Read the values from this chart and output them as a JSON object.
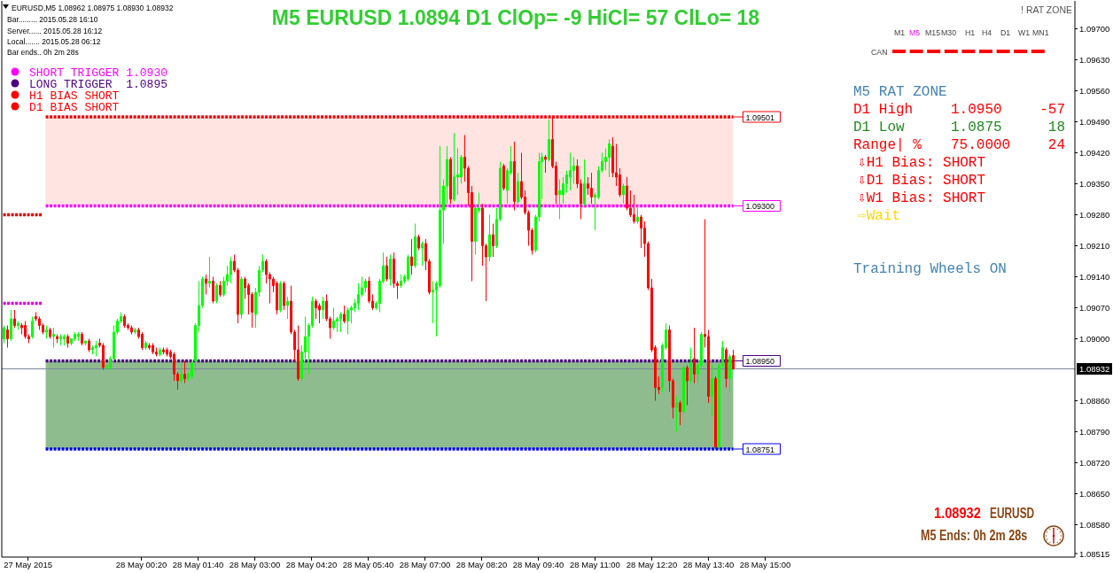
{
  "chart_data": {
    "type": "candlestick",
    "title": "M5 EURUSD 1.0894 D1 ClOp= -9 HiCl= 57 ClLo= 18",
    "annotations": [
      "EURUSD,M5 1.08962 1.08975 1.08930 1.08932",
      "Bar......... 2015.05.28 16:10",
      "Server...... 2015.05.28 16:12",
      "Local....... 2015.05.28 06:12",
      "Bar ends.. 0h 2m 28s",
      "H1 BIAS SHORT",
      "D1 BIAS SHORT",
      "! RAT ZONE",
      "M1",
      "M5",
      "M15",
      "M30",
      "H1",
      "H4",
      "D1",
      "W1",
      "MN1",
      "CAN",
      "M5 RAT ZONE",
      "D1 High",
      "1.0950",
      "-57",
      "D1 Low",
      "1.0875",
      "18",
      "Range| %",
      "75.0000",
      "24",
      "⇩H1 Bias: SHORT",
      "⇩D1 Bias: SHORT",
      "⇩W1 Bias: SHORT",
      "⇨Wait",
      "Training Wheels ON",
      "1.08932",
      "EURUSD",
      "M5 Ends: 0h 2m 28s"
    ],
    "x": [
      "2015-05-27T21:05",
      "2015-05-27T21:10",
      "2015-05-27T21:15",
      "2015-05-27T21:20",
      "2015-05-27T21:25",
      "2015-05-27T21:30",
      "2015-05-27T21:35",
      "2015-05-27T21:40",
      "2015-05-27T21:45",
      "2015-05-27T21:50",
      "2015-05-27T21:55",
      "2015-05-27T22:00",
      "2015-05-27T22:05",
      "2015-05-27T22:10",
      "2015-05-27T22:15",
      "2015-05-27T22:20",
      "2015-05-27T22:25",
      "2015-05-27T22:30",
      "2015-05-27T22:35",
      "2015-05-27T22:40",
      "2015-05-27T22:45",
      "2015-05-27T22:50",
      "2015-05-27T22:55",
      "2015-05-27T23:00",
      "2015-05-27T23:05",
      "2015-05-27T23:10",
      "2015-05-27T23:15",
      "2015-05-27T23:20",
      "2015-05-27T23:25",
      "2015-05-27T23:30",
      "2015-05-27T23:35",
      "2015-05-27T23:40",
      "2015-05-27T23:45",
      "2015-05-27T23:50",
      "2015-05-27T23:55",
      "2015-05-28T00:00",
      "2015-05-28T00:05",
      "2015-05-28T00:10",
      "2015-05-28T00:15",
      "2015-05-28T00:20",
      "2015-05-28T00:25",
      "2015-05-28T00:30",
      "2015-05-28T00:35",
      "2015-05-28T00:40",
      "2015-05-28T00:45",
      "2015-05-28T00:50",
      "2015-05-28T00:55",
      "2015-05-28T01:00",
      "2015-05-28T01:05",
      "2015-05-28T01:10",
      "2015-05-28T01:15",
      "2015-05-28T01:20",
      "2015-05-28T01:25",
      "2015-05-28T01:30",
      "2015-05-28T01:35",
      "2015-05-28T01:40",
      "2015-05-28T01:45",
      "2015-05-28T01:50",
      "2015-05-28T01:55",
      "2015-05-28T02:00",
      "2015-05-28T02:05",
      "2015-05-28T02:10",
      "2015-05-28T02:15",
      "2015-05-28T02:20",
      "2015-05-28T02:25",
      "2015-05-28T02:30",
      "2015-05-28T02:35",
      "2015-05-28T02:40",
      "2015-05-28T02:45",
      "2015-05-28T02:50",
      "2015-05-28T02:55",
      "2015-05-28T03:00",
      "2015-05-28T03:05",
      "2015-05-28T03:10",
      "2015-05-28T03:15",
      "2015-05-28T03:20",
      "2015-05-28T03:25",
      "2015-05-28T03:30",
      "2015-05-28T03:35",
      "2015-05-28T03:40",
      "2015-05-28T03:45",
      "2015-05-28T03:50",
      "2015-05-28T03:55",
      "2015-05-28T04:00",
      "2015-05-28T04:05",
      "2015-05-28T04:10",
      "2015-05-28T04:15",
      "2015-05-28T04:20",
      "2015-05-28T04:25",
      "2015-05-28T04:30",
      "2015-05-28T04:35",
      "2015-05-28T04:40",
      "2015-05-28T04:45",
      "2015-05-28T04:50",
      "2015-05-28T04:55",
      "2015-05-28T05:00",
      "2015-05-28T05:05",
      "2015-05-28T05:10",
      "2015-05-28T05:15",
      "2015-05-28T05:20",
      "2015-05-28T05:25",
      "2015-05-28T05:30",
      "2015-05-28T05:35",
      "2015-05-28T05:40",
      "2015-05-28T05:45",
      "2015-05-28T05:50",
      "2015-05-28T05:55",
      "2015-05-28T06:00",
      "2015-05-28T06:05",
      "2015-05-28T06:10",
      "2015-05-28T06:15",
      "2015-05-28T06:20",
      "2015-05-28T06:25",
      "2015-05-28T06:30",
      "2015-05-28T06:35",
      "2015-05-28T06:40",
      "2015-05-28T06:45",
      "2015-05-28T06:50",
      "2015-05-28T06:55",
      "2015-05-28T07:00",
      "2015-05-28T07:05",
      "2015-05-28T07:10",
      "2015-05-28T07:15",
      "2015-05-28T07:20",
      "2015-05-28T07:25",
      "2015-05-28T07:30",
      "2015-05-28T07:35",
      "2015-05-28T07:40",
      "2015-05-28T07:45",
      "2015-05-28T07:50",
      "2015-05-28T07:55",
      "2015-05-28T08:00",
      "2015-05-28T08:05",
      "2015-05-28T08:10",
      "2015-05-28T08:15",
      "2015-05-28T08:20",
      "2015-05-28T08:25",
      "2015-05-28T08:30",
      "2015-05-28T08:35",
      "2015-05-28T08:40",
      "2015-05-28T08:45",
      "2015-05-28T08:50",
      "2015-05-28T08:55",
      "2015-05-28T09:00",
      "2015-05-28T09:05",
      "2015-05-28T09:10",
      "2015-05-28T09:15",
      "2015-05-28T09:20",
      "2015-05-28T09:25",
      "2015-05-28T09:30",
      "2015-05-28T09:35",
      "2015-05-28T09:40",
      "2015-05-28T09:45",
      "2015-05-28T09:50",
      "2015-05-28T09:55",
      "2015-05-28T10:00",
      "2015-05-28T10:05",
      "2015-05-28T10:10",
      "2015-05-28T10:15",
      "2015-05-28T10:20",
      "2015-05-28T10:25",
      "2015-05-28T10:30",
      "2015-05-28T10:35",
      "2015-05-28T10:40",
      "2015-05-28T10:45",
      "2015-05-28T10:50",
      "2015-05-28T10:55",
      "2015-05-28T11:00",
      "2015-05-28T11:05",
      "2015-05-28T11:10",
      "2015-05-28T11:15",
      "2015-05-28T11:20",
      "2015-05-28T11:25",
      "2015-05-28T11:30",
      "2015-05-28T11:35",
      "2015-05-28T11:40",
      "2015-05-28T11:45",
      "2015-05-28T11:50",
      "2015-05-28T11:55",
      "2015-05-28T12:00",
      "2015-05-28T12:05",
      "2015-05-28T12:10",
      "2015-05-28T12:15",
      "2015-05-28T12:20",
      "2015-05-28T12:25",
      "2015-05-28T12:30",
      "2015-05-28T12:35",
      "2015-05-28T12:40",
      "2015-05-28T12:45",
      "2015-05-28T12:50",
      "2015-05-28T12:55",
      "2015-05-28T13:00",
      "2015-05-28T13:05",
      "2015-05-28T13:10",
      "2015-05-28T13:15",
      "2015-05-28T13:20",
      "2015-05-28T13:25",
      "2015-05-28T13:30",
      "2015-05-28T13:35",
      "2015-05-28T13:40",
      "2015-05-28T13:45",
      "2015-05-28T13:50",
      "2015-05-28T13:55",
      "2015-05-28T14:00",
      "2015-05-28T14:05",
      "2015-05-28T14:10",
      "2015-05-28T14:15"
    ],
    "ohlc": [
      [
        1.09,
        1.0903,
        1.0899,
        1.09025
      ],
      [
        1.0902,
        1.0903,
        1.0898,
        1.09
      ],
      [
        1.09,
        1.09065,
        1.08995,
        1.09045
      ],
      [
        1.09045,
        1.09065,
        1.09025,
        1.0903
      ],
      [
        1.0903,
        1.0904,
        1.0902,
        1.09035
      ],
      [
        1.0903,
        1.09035,
        1.0901,
        1.09025
      ],
      [
        1.0903,
        1.0904,
        1.09,
        1.09005
      ],
      [
        1.09005,
        1.0901,
        1.0899,
        1.09
      ],
      [
        1.09005,
        1.0905,
        1.09,
        1.0904
      ],
      [
        1.0905,
        1.0906,
        1.0904,
        1.09045
      ],
      [
        1.09045,
        1.0905,
        1.0902,
        1.0903
      ],
      [
        1.0903,
        1.09035,
        1.0901,
        1.09015
      ],
      [
        1.09015,
        1.0903,
        1.09,
        1.0902
      ],
      [
        1.0902,
        1.09025,
        1.09,
        1.09005
      ],
      [
        1.09005,
        1.09025,
        1.0898,
        1.0901
      ],
      [
        1.09005,
        1.0901,
        1.0899,
        1.09
      ],
      [
        1.09,
        1.0901,
        1.08985,
        1.09005
      ],
      [
        1.09,
        1.0901,
        1.08985,
        1.09005
      ],
      [
        1.09005,
        1.0901,
        1.0898,
        1.0899
      ],
      [
        1.0899,
        1.09,
        1.08985,
        1.09
      ],
      [
        1.09,
        1.09015,
        1.08995,
        1.0901
      ],
      [
        1.09005,
        1.09015,
        1.08995,
        1.0901
      ],
      [
        1.0901,
        1.09015,
        1.08985,
        1.0899
      ],
      [
        1.0899,
        1.08995,
        1.08985,
        1.08995
      ],
      [
        1.08995,
        1.09,
        1.0897,
        1.08975
      ],
      [
        1.08975,
        1.08985,
        1.08965,
        1.0898
      ],
      [
        1.0898,
        1.08995,
        1.0896,
        1.08985
      ],
      [
        1.0899,
        1.09,
        1.0898,
        1.08985
      ],
      [
        1.08985,
        1.0899,
        1.0893,
        1.08935
      ],
      [
        1.08935,
        1.0894,
        1.0893,
        1.0894
      ],
      [
        1.08935,
        1.0896,
        1.0893,
        1.08955
      ],
      [
        1.08955,
        1.0903,
        1.0895,
        1.09015
      ],
      [
        1.09015,
        1.09045,
        1.0901,
        1.0904
      ],
      [
        1.0904,
        1.0906,
        1.09035,
        1.0905
      ],
      [
        1.0905,
        1.09055,
        1.09025,
        1.0903
      ],
      [
        1.0903,
        1.09035,
        1.0902,
        1.09025
      ],
      [
        1.09025,
        1.0903,
        1.0901,
        1.09015
      ],
      [
        1.09015,
        1.09025,
        1.0901,
        1.0902
      ],
      [
        1.0902,
        1.09025,
        1.09,
        1.09005
      ],
      [
        1.0901,
        1.09015,
        1.08975,
        1.0898
      ],
      [
        1.0898,
        1.08995,
        1.08975,
        1.0899
      ],
      [
        1.08985,
        1.0899,
        1.08975,
        1.0898
      ],
      [
        1.08985,
        1.0899,
        1.08965,
        1.0897
      ],
      [
        1.0897,
        1.0898,
        1.0896,
        1.08965
      ],
      [
        1.08965,
        1.0898,
        1.0896,
        1.08975
      ],
      [
        1.08975,
        1.0898,
        1.08965,
        1.0897
      ],
      [
        1.08975,
        1.0898,
        1.0896,
        1.08965
      ],
      [
        1.0897,
        1.08975,
        1.08955,
        1.0896
      ],
      [
        1.08965,
        1.0897,
        1.08905,
        1.0892
      ],
      [
        1.0892,
        1.08925,
        1.08885,
        1.08905
      ],
      [
        1.08905,
        1.08945,
        1.089,
        1.0892
      ],
      [
        1.0892,
        1.0895,
        1.089,
        1.0891
      ],
      [
        1.0891,
        1.08925,
        1.08905,
        1.0892
      ],
      [
        1.08915,
        1.0895,
        1.0891,
        1.08945
      ],
      [
        1.0895,
        1.09035,
        1.08925,
        1.0903
      ],
      [
        1.0903,
        1.0913,
        1.09015,
        1.09075
      ],
      [
        1.09075,
        1.0914,
        1.0907,
        1.09135
      ],
      [
        1.09135,
        1.09145,
        1.091,
        1.09125
      ],
      [
        1.09125,
        1.09185,
        1.09115,
        1.0913
      ],
      [
        1.0913,
        1.0914,
        1.0908,
        1.09085
      ],
      [
        1.09085,
        1.09125,
        1.0908,
        1.0912
      ],
      [
        1.0912,
        1.0913,
        1.09095,
        1.091
      ],
      [
        1.091,
        1.0914,
        1.09095,
        1.0913
      ],
      [
        1.0913,
        1.09165,
        1.0912,
        1.09145
      ],
      [
        1.09145,
        1.09185,
        1.09125,
        1.09175
      ],
      [
        1.09175,
        1.0919,
        1.0915,
        1.09155
      ],
      [
        1.09155,
        1.0916,
        1.09035,
        1.09055
      ],
      [
        1.09055,
        1.0914,
        1.09045,
        1.09135
      ],
      [
        1.09135,
        1.0914,
        1.0909,
        1.09115
      ],
      [
        1.0912,
        1.09125,
        1.09055,
        1.091
      ],
      [
        1.091,
        1.09105,
        1.09025,
        1.0906
      ],
      [
        1.09055,
        1.09115,
        1.09025,
        1.09105
      ],
      [
        1.09105,
        1.09165,
        1.09095,
        1.09155
      ],
      [
        1.09155,
        1.0919,
        1.0915,
        1.09175
      ],
      [
        1.09175,
        1.0918,
        1.09125,
        1.09145
      ],
      [
        1.09145,
        1.0915,
        1.0908,
        1.09135
      ],
      [
        1.09135,
        1.0914,
        1.09105,
        1.0912
      ],
      [
        1.09125,
        1.0913,
        1.09055,
        1.09065
      ],
      [
        1.09065,
        1.0913,
        1.0906,
        1.09125
      ],
      [
        1.09125,
        1.0913,
        1.09065,
        1.09075
      ],
      [
        1.09075,
        1.09095,
        1.09045,
        1.09085
      ],
      [
        1.09085,
        1.0912,
        1.0901,
        1.09015
      ],
      [
        1.09015,
        1.0902,
        1.0895,
        1.08975
      ],
      [
        1.08975,
        1.0903,
        1.08905,
        1.0891
      ],
      [
        1.0891,
        1.08985,
        1.08905,
        1.0897
      ],
      [
        1.0897,
        1.0905,
        1.0895,
        1.09005
      ],
      [
        1.09005,
        1.09035,
        1.0892,
        1.0903
      ],
      [
        1.0903,
        1.09095,
        1.09025,
        1.09085
      ],
      [
        1.09085,
        1.0909,
        1.09045,
        1.0907
      ],
      [
        1.09075,
        1.0908,
        1.09035,
        1.09065
      ],
      [
        1.09065,
        1.09095,
        1.09045,
        1.09085
      ],
      [
        1.09085,
        1.091,
        1.0904,
        1.09045
      ],
      [
        1.09045,
        1.0905,
        1.09,
        1.09025
      ],
      [
        1.09025,
        1.0907,
        1.0902,
        1.0904
      ],
      [
        1.0904,
        1.0905,
        1.09015,
        1.09045
      ],
      [
        1.09045,
        1.0906,
        1.09015,
        1.09055
      ],
      [
        1.09055,
        1.09075,
        1.09035,
        1.0904
      ],
      [
        1.0904,
        1.0907,
        1.0901,
        1.09065
      ],
      [
        1.09065,
        1.09075,
        1.09035,
        1.0907
      ],
      [
        1.0907,
        1.0909,
        1.0906,
        1.0908
      ],
      [
        1.0908,
        1.09125,
        1.09065,
        1.091
      ],
      [
        1.091,
        1.0914,
        1.09095,
        1.09115
      ],
      [
        1.09115,
        1.09135,
        1.09105,
        1.0913
      ],
      [
        1.0913,
        1.0914,
        1.0908,
        1.09085
      ],
      [
        1.09085,
        1.091,
        1.09065,
        1.0907
      ],
      [
        1.0907,
        1.09085,
        1.09065,
        1.0908
      ],
      [
        1.0908,
        1.09135,
        1.0906,
        1.0913
      ],
      [
        1.0913,
        1.09195,
        1.09125,
        1.09165
      ],
      [
        1.09165,
        1.09185,
        1.0913,
        1.09135
      ],
      [
        1.09135,
        1.0919,
        1.0912,
        1.0918
      ],
      [
        1.0918,
        1.09195,
        1.09115,
        1.09125
      ],
      [
        1.09125,
        1.0913,
        1.0909,
        1.0912
      ],
      [
        1.0912,
        1.09145,
        1.09115,
        1.0913
      ],
      [
        1.0913,
        1.09145,
        1.09125,
        1.0914
      ],
      [
        1.09135,
        1.0919,
        1.0913,
        1.09185
      ],
      [
        1.09185,
        1.09225,
        1.09145,
        1.09165
      ],
      [
        1.09165,
        1.0926,
        1.0916,
        1.0923
      ],
      [
        1.0923,
        1.09235,
        1.092,
        1.09205
      ],
      [
        1.09205,
        1.0922,
        1.09165,
        1.09215
      ],
      [
        1.09215,
        1.09225,
        1.09155,
        1.09175
      ],
      [
        1.09175,
        1.0918,
        1.091,
        1.09105
      ],
      [
        1.09105,
        1.0913,
        1.09035,
        1.0911
      ],
      [
        1.0911,
        1.0913,
        1.09005,
        1.09125
      ],
      [
        1.0912,
        1.09435,
        1.09115,
        1.0929
      ],
      [
        1.0929,
        1.0936,
        1.09215,
        1.09345
      ],
      [
        1.09345,
        1.09435,
        1.09305,
        1.09405
      ],
      [
        1.09405,
        1.0941,
        1.09305,
        1.09315
      ],
      [
        1.09315,
        1.09465,
        1.0931,
        1.09365
      ],
      [
        1.09365,
        1.0943,
        1.09325,
        1.0937
      ],
      [
        1.09365,
        1.09415,
        1.0935,
        1.0941
      ],
      [
        1.0941,
        1.0946,
        1.09355,
        1.09385
      ],
      [
        1.09385,
        1.0939,
        1.093,
        1.0933
      ],
      [
        1.0933,
        1.09345,
        1.0913,
        1.0922
      ],
      [
        1.0922,
        1.093,
        1.0919,
        1.09295
      ],
      [
        1.0929,
        1.0933,
        1.09285,
        1.09295
      ],
      [
        1.09295,
        1.09305,
        1.09165,
        1.0921
      ],
      [
        1.0921,
        1.09215,
        1.09085,
        1.09185
      ],
      [
        1.09185,
        1.0928,
        1.09175,
        1.09235
      ],
      [
        1.09235,
        1.0926,
        1.09185,
        1.0921
      ],
      [
        1.0921,
        1.09295,
        1.09205,
        1.0927
      ],
      [
        1.0927,
        1.094,
        1.09265,
        1.09385
      ],
      [
        1.0939,
        1.09395,
        1.09335,
        1.0934
      ],
      [
        1.09335,
        1.09385,
        1.09305,
        1.0938
      ],
      [
        1.09375,
        1.09435,
        1.0937,
        1.094
      ],
      [
        1.094,
        1.09445,
        1.0929,
        1.0931
      ],
      [
        1.0931,
        1.09375,
        1.09305,
        1.09355
      ],
      [
        1.09355,
        1.0942,
        1.09315,
        1.0932
      ],
      [
        1.0932,
        1.09335,
        1.0928,
        1.09285
      ],
      [
        1.09285,
        1.0929,
        1.0921,
        1.09245
      ],
      [
        1.09245,
        1.0925,
        1.0919,
        1.092
      ],
      [
        1.092,
        1.0928,
        1.09195,
        1.09275
      ],
      [
        1.09275,
        1.0942,
        1.09265,
        1.094
      ],
      [
        1.094,
        1.0942,
        1.09315,
        1.0941
      ],
      [
        1.0941,
        1.09415,
        1.09375,
        1.09405
      ],
      [
        1.09405,
        1.09495,
        1.094,
        1.0945
      ],
      [
        1.0945,
        1.095,
        1.09385,
        1.0939
      ],
      [
        1.0939,
        1.094,
        1.09305,
        1.09325
      ],
      [
        1.09325,
        1.0936,
        1.0927,
        1.09335
      ],
      [
        1.09325,
        1.09365,
        1.09305,
        1.0935
      ],
      [
        1.0935,
        1.0938,
        1.0933,
        1.0937
      ],
      [
        1.09365,
        1.0942,
        1.09335,
        1.0938
      ],
      [
        1.0938,
        1.0941,
        1.0935,
        1.0939
      ],
      [
        1.0939,
        1.09405,
        1.0934,
        1.0935
      ],
      [
        1.0935,
        1.0936,
        1.0927,
        1.09305
      ],
      [
        1.09305,
        1.09405,
        1.093,
        1.0935
      ],
      [
        1.0935,
        1.09365,
        1.09325,
        1.0934
      ],
      [
        1.0934,
        1.09375,
        1.09305,
        1.0932
      ],
      [
        1.0932,
        1.0933,
        1.09245,
        1.09325
      ],
      [
        1.0932,
        1.0939,
        1.09315,
        1.0938
      ],
      [
        1.0938,
        1.0942,
        1.09375,
        1.094
      ],
      [
        1.094,
        1.0943,
        1.0938,
        1.0941
      ],
      [
        1.0941,
        1.0945,
        1.09365,
        1.0944
      ],
      [
        1.09435,
        1.09455,
        1.09365,
        1.09375
      ],
      [
        1.09375,
        1.0944,
        1.09345,
        1.09365
      ],
      [
        1.0937,
        1.09385,
        1.0932,
        1.09325
      ],
      [
        1.09325,
        1.0935,
        1.09305,
        1.09345
      ],
      [
        1.09345,
        1.09365,
        1.0929,
        1.09295
      ],
      [
        1.09295,
        1.09335,
        1.09275,
        1.0928
      ],
      [
        1.0928,
        1.09325,
        1.0926,
        1.09265
      ],
      [
        1.09265,
        1.093,
        1.0926,
        1.09275
      ],
      [
        1.09275,
        1.0928,
        1.09205,
        1.0925
      ],
      [
        1.0925,
        1.09265,
        1.09185,
        1.09215
      ],
      [
        1.09215,
        1.0922,
        1.0911,
        1.09115
      ],
      [
        1.09115,
        1.09135,
        1.0897,
        1.08975
      ],
      [
        1.0898,
        1.08985,
        1.0886,
        1.0889
      ],
      [
        1.0889,
        1.08915,
        1.08875,
        1.08885
      ],
      [
        1.0889,
        1.0899,
        1.0888,
        1.08985
      ],
      [
        1.0898,
        1.09035,
        1.08975,
        1.0902
      ],
      [
        1.0902,
        1.0903,
        1.0888,
        1.08905
      ],
      [
        1.08905,
        1.0891,
        1.0882,
        1.08845
      ],
      [
        1.08845,
        1.0887,
        1.0879,
        1.08855
      ],
      [
        1.08855,
        1.0886,
        1.08805,
        1.08835
      ],
      [
        1.08835,
        1.0894,
        1.0883,
        1.08935
      ],
      [
        1.08935,
        1.0894,
        1.0885,
        1.08905
      ],
      [
        1.08905,
        1.0898,
        1.089,
        1.08945
      ],
      [
        1.08955,
        1.09025,
        1.089,
        1.0892
      ],
      [
        1.0892,
        1.08945,
        1.089,
        1.0894
      ],
      [
        1.0894,
        1.09015,
        1.08935,
        1.0901
      ],
      [
        1.0901,
        1.0927,
        1.0898,
        1.09005
      ],
      [
        1.09005,
        1.0902,
        1.08855,
        1.0887
      ],
      [
        1.0887,
        1.0894,
        1.08825,
        1.0891
      ],
      [
        1.0891,
        1.08915,
        1.0875,
        1.08755
      ],
      [
        1.08755,
        1.08945,
        1.0875,
        1.0894
      ],
      [
        1.0894,
        1.08995,
        1.08935,
        1.0898
      ],
      [
        1.08975,
        1.0898,
        1.0889,
        1.0891
      ],
      [
        1.0891,
        1.08965,
        1.0888,
        1.0896
      ],
      [
        1.08962,
        1.08975,
        1.0893,
        1.08932
      ]
    ],
    "series": [
      {
        "type": "line",
        "color": "#ffe4e1",
        "x": [
          "2015-05-27T22:05",
          "2015-05-28T14:15"
        ],
        "values": [
          null,
          null
        ],
        "lower": [
          1.093,
          1.093
        ],
        "upper": [
          1.09501,
          1.09501
        ]
      },
      {
        "type": "line",
        "color": "#8fbc8f",
        "x": [
          "2015-05-27T22:05",
          "2015-05-28T14:15"
        ],
        "values": [
          null,
          null
        ],
        "lower": [
          1.08751,
          1.08751
        ],
        "upper": [
          1.0895,
          1.0895
        ]
      },
      {
        "type": "line",
        "color": "#f00000",
        "line_style": "dotted",
        "x": [
          "2015-05-27T22:05",
          "2015-05-28T14:15"
        ],
        "values": [
          1.09501,
          1.09501
        ],
        "value_labels": [
          null,
          "1.09501"
        ]
      },
      {
        "type": "line",
        "name": "SHORT TRIGGER 1.0930",
        "color": "#ff00ff",
        "line_style": "dotted",
        "x": [
          "2015-05-27T22:05",
          "2015-05-28T14:15"
        ],
        "values": [
          1.093,
          1.093
        ],
        "value_labels": [
          null,
          "1.09300"
        ]
      },
      {
        "type": "line",
        "name": "LONG TRIGGER  1.0895",
        "color": "#4b0082",
        "line_style": "dotted",
        "x": [
          "2015-05-27T22:05",
          "2015-05-28T14:15"
        ],
        "values": [
          1.0895,
          1.0895
        ],
        "value_labels": [
          null,
          "1.08950"
        ]
      },
      {
        "type": "line",
        "color": "#0000ff",
        "line_style": "dotted",
        "x": [
          "2015-05-27T22:05",
          "2015-05-28T14:15"
        ],
        "values": [
          1.08751,
          1.08751
        ],
        "value_labels": [
          null,
          "1.08751"
        ]
      },
      {
        "type": "line",
        "color": "#e00000",
        "line_style": "dotted",
        "x": [
          "2015-05-27T21:05",
          "2015-05-27T22:00"
        ],
        "values": [
          1.0928,
          1.0928
        ]
      },
      {
        "type": "line",
        "color": "#e000e0",
        "line_style": "dotted",
        "x": [
          "2015-05-27T21:05",
          "2015-05-27T22:00"
        ],
        "values": [
          1.0908,
          1.0908
        ]
      }
    ],
    "ref_lines": [
      {
        "axis": "y",
        "value": 1.08932,
        "label": "1.08932",
        "color": "#778899"
      }
    ],
    "xlim": [
      "2015-05-27T21:03",
      "2015-05-28T22:17"
    ],
    "xticks": [
      {
        "value": "2015-05-27T21:40",
        "label": "27 May 2015"
      },
      {
        "value": "2015-05-28T00:20",
        "label": "28 May 00:20"
      },
      {
        "value": "2015-05-28T01:40",
        "label": "28 May 01:40"
      },
      {
        "value": "2015-05-28T03:00",
        "label": "28 May 03:00"
      },
      {
        "value": "2015-05-28T04:20",
        "label": "28 May 04:20"
      },
      {
        "value": "2015-05-28T05:40",
        "label": "28 May 05:40"
      },
      {
        "value": "2015-05-28T07:00",
        "label": "28 May 07:00"
      },
      {
        "value": "2015-05-28T08:20",
        "label": "28 May 08:20"
      },
      {
        "value": "2015-05-28T09:40",
        "label": "28 May 09:40"
      },
      {
        "value": "2015-05-28T11:00",
        "label": "28 May 11:00"
      },
      {
        "value": "2015-05-28T12:20",
        "label": "28 May 12:20"
      },
      {
        "value": "2015-05-28T13:40",
        "label": "28 May 13:40"
      },
      {
        "value": "2015-05-28T15:00",
        "label": "28 May 15:00"
      }
    ],
    "ylim": [
      1.08507,
      1.09763
    ],
    "yticks": [
      {
        "value": 1.097,
        "label": "1.09700"
      },
      {
        "value": 1.0963,
        "label": "1.09630"
      },
      {
        "value": 1.0956,
        "label": "1.09560"
      },
      {
        "value": 1.0949,
        "label": "1.09490"
      },
      {
        "value": 1.0942,
        "label": "1.09420"
      },
      {
        "value": 1.0935,
        "label": "1.09350"
      },
      {
        "value": 1.0928,
        "label": "1.09280"
      },
      {
        "value": 1.0921,
        "label": "1.09210"
      },
      {
        "value": 1.0914,
        "label": "1.09140"
      },
      {
        "value": 1.0907,
        "label": "1.09070"
      },
      {
        "value": 1.09,
        "label": "1.09000"
      },
      {
        "value": 1.0886,
        "label": "1.08860"
      },
      {
        "value": 1.0879,
        "label": "1.08790"
      },
      {
        "value": 1.0872,
        "label": "1.08720"
      },
      {
        "value": 1.0865,
        "label": "1.08650"
      },
      {
        "value": 1.0858,
        "label": "1.08580"
      },
      {
        "value": 1.08515,
        "label": "1.08515"
      }
    ],
    "legend": "top left"
  }
}
